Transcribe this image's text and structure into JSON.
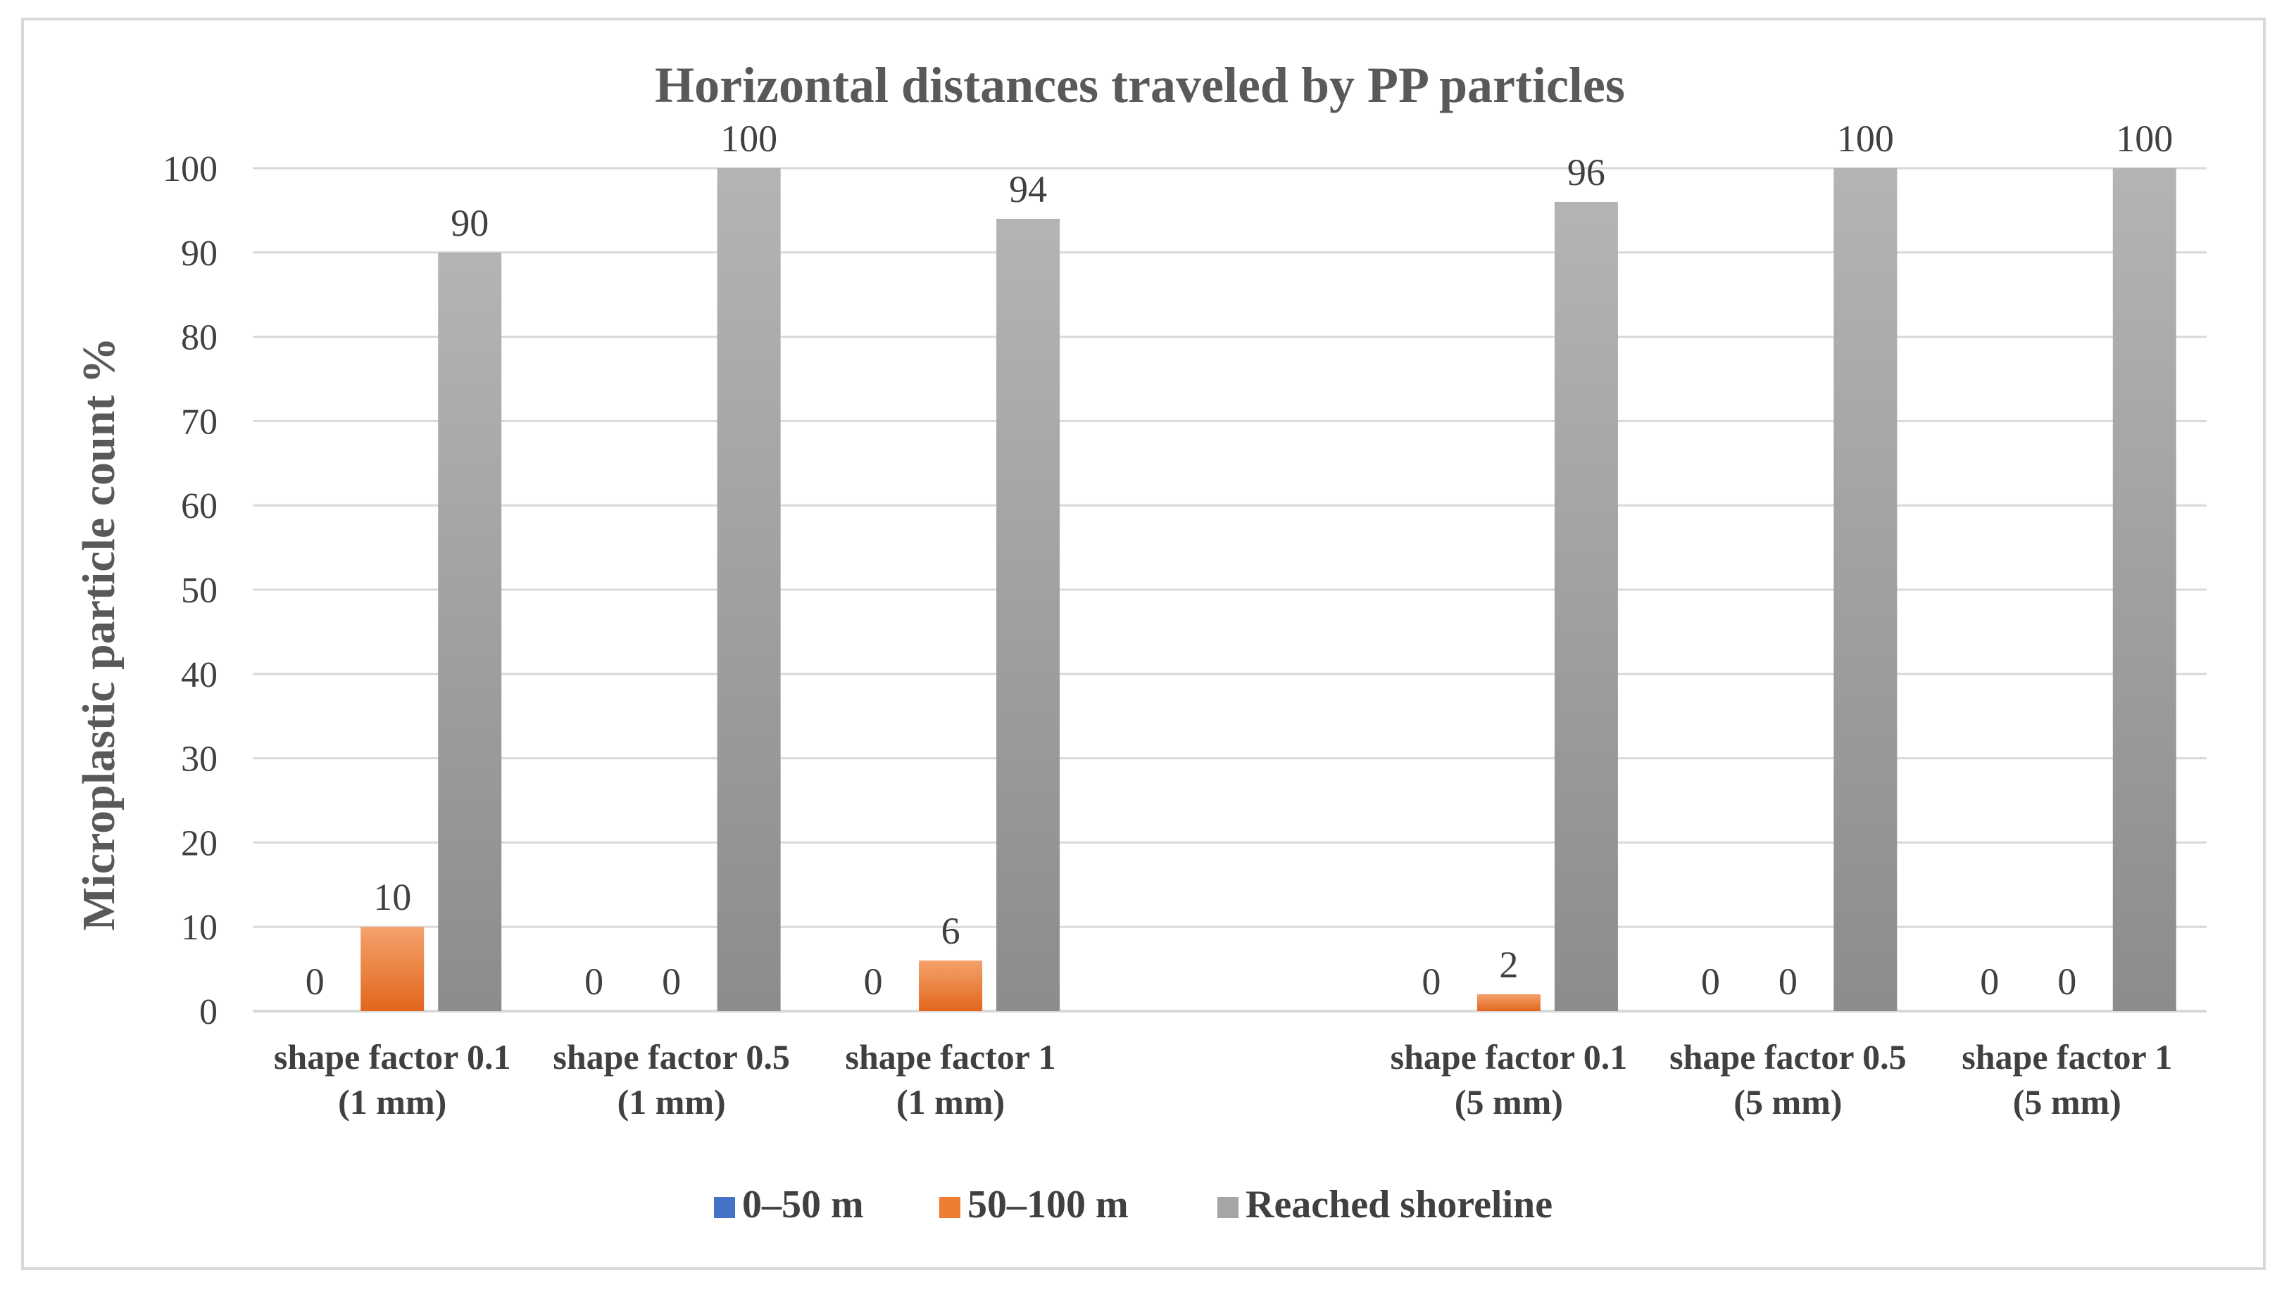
{
  "chart_data": {
    "type": "bar",
    "title": "Horizontal distances traveled by PP particles",
    "ylabel": "Microplastic particle count %",
    "xlabel": "",
    "ylim": [
      0,
      100
    ],
    "yticks": [
      "0",
      "10",
      "20",
      "30",
      "40",
      "50",
      "60",
      "70",
      "80",
      "90",
      "100"
    ],
    "grid": true,
    "legend_position": "bottom",
    "categories": [
      [
        "shape factor 0.1",
        "(1 mm)"
      ],
      [
        "shape factor 0.5",
        "(1 mm)"
      ],
      [
        "shape factor 1",
        "(1 mm)"
      ],
      [
        "",
        ""
      ],
      [
        "shape factor 0.1",
        "(5 mm)"
      ],
      [
        "shape factor 0.5",
        "(5 mm)"
      ],
      [
        "shape factor 1",
        "(5 mm)"
      ]
    ],
    "series": [
      {
        "name": "0–50 m",
        "color": "#4472c4",
        "values": [
          0,
          0,
          0,
          null,
          0,
          0,
          0
        ]
      },
      {
        "name": "50–100 m",
        "color": "#ed7d31",
        "values": [
          10,
          0,
          6,
          null,
          2,
          0,
          0
        ]
      },
      {
        "name": "Reached shoreline",
        "color": "#a5a5a5",
        "values": [
          90,
          100,
          94,
          null,
          96,
          100,
          100
        ]
      }
    ],
    "data_labels": [
      [
        "0",
        "0",
        "0",
        "",
        "0",
        "0",
        "0"
      ],
      [
        "10",
        "0",
        "6",
        "",
        "2",
        "0",
        "0"
      ],
      [
        "90",
        "100",
        "94",
        "",
        "96",
        "100",
        "100"
      ]
    ]
  }
}
